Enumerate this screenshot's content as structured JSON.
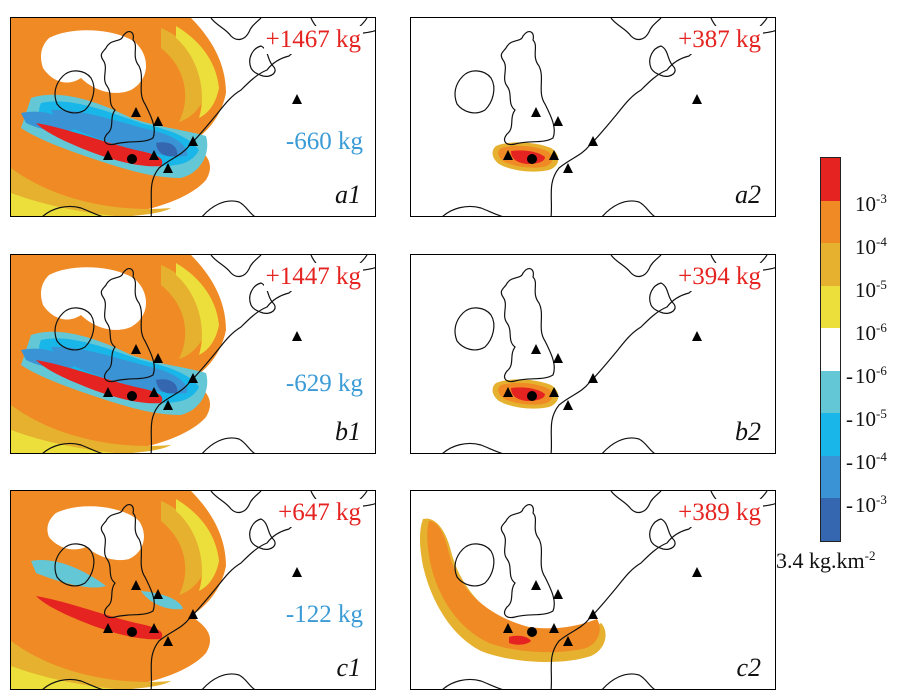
{
  "panels": [
    {
      "id": "a1",
      "tag": "a1",
      "total_positive": "+1467 kg",
      "total_negative": "-660 kg",
      "scenario": "mixed"
    },
    {
      "id": "a2",
      "tag": "a2",
      "total_positive": "+387 kg",
      "total_negative": "",
      "scenario": "small"
    },
    {
      "id": "b1",
      "tag": "b1",
      "total_positive": "+1447 kg",
      "total_negative": "-629 kg",
      "scenario": "mixed"
    },
    {
      "id": "b2",
      "tag": "b2",
      "total_positive": "+394 kg",
      "total_negative": "",
      "scenario": "small"
    },
    {
      "id": "c1",
      "tag": "c1",
      "total_positive": "+647 kg",
      "total_negative": "-122 kg",
      "scenario": "mixed_weak"
    },
    {
      "id": "c2",
      "tag": "c2",
      "total_positive": "+389 kg",
      "total_negative": "",
      "scenario": "plume"
    }
  ],
  "colorbar": {
    "colors": [
      "#e52421",
      "#f08a24",
      "#e5b12f",
      "#ecdf3c",
      "#ffffff",
      "#64c7d6",
      "#18b6e9",
      "#3a93d4",
      "#3567b1"
    ],
    "ticks": [
      {
        "sign": "",
        "base": "10",
        "exp": "-3"
      },
      {
        "sign": "",
        "base": "10",
        "exp": "-4"
      },
      {
        "sign": "",
        "base": "10",
        "exp": "-5"
      },
      {
        "sign": "",
        "base": "10",
        "exp": "-6"
      },
      {
        "sign": "-",
        "base": "10",
        "exp": "-6"
      },
      {
        "sign": "-",
        "base": "10",
        "exp": "-5"
      },
      {
        "sign": "-",
        "base": "10",
        "exp": "-4"
      },
      {
        "sign": "-",
        "base": "10",
        "exp": "-3"
      }
    ],
    "unit_value": "3.4 kg.km",
    "unit_exp": "-2"
  },
  "legend_colors": {
    "red": "#e52421",
    "orange": "#f08a24",
    "gold": "#e5b12f",
    "yellow": "#ecdf3c",
    "cyan": "#64c7d6",
    "sky": "#18b6e9",
    "blue": "#3a93d4",
    "darkblue": "#3567b1",
    "positive_label": "#e52421",
    "negative_label": "#3b9bd6"
  },
  "markers": {
    "station": "triangle-icon",
    "source": "dot-icon"
  }
}
